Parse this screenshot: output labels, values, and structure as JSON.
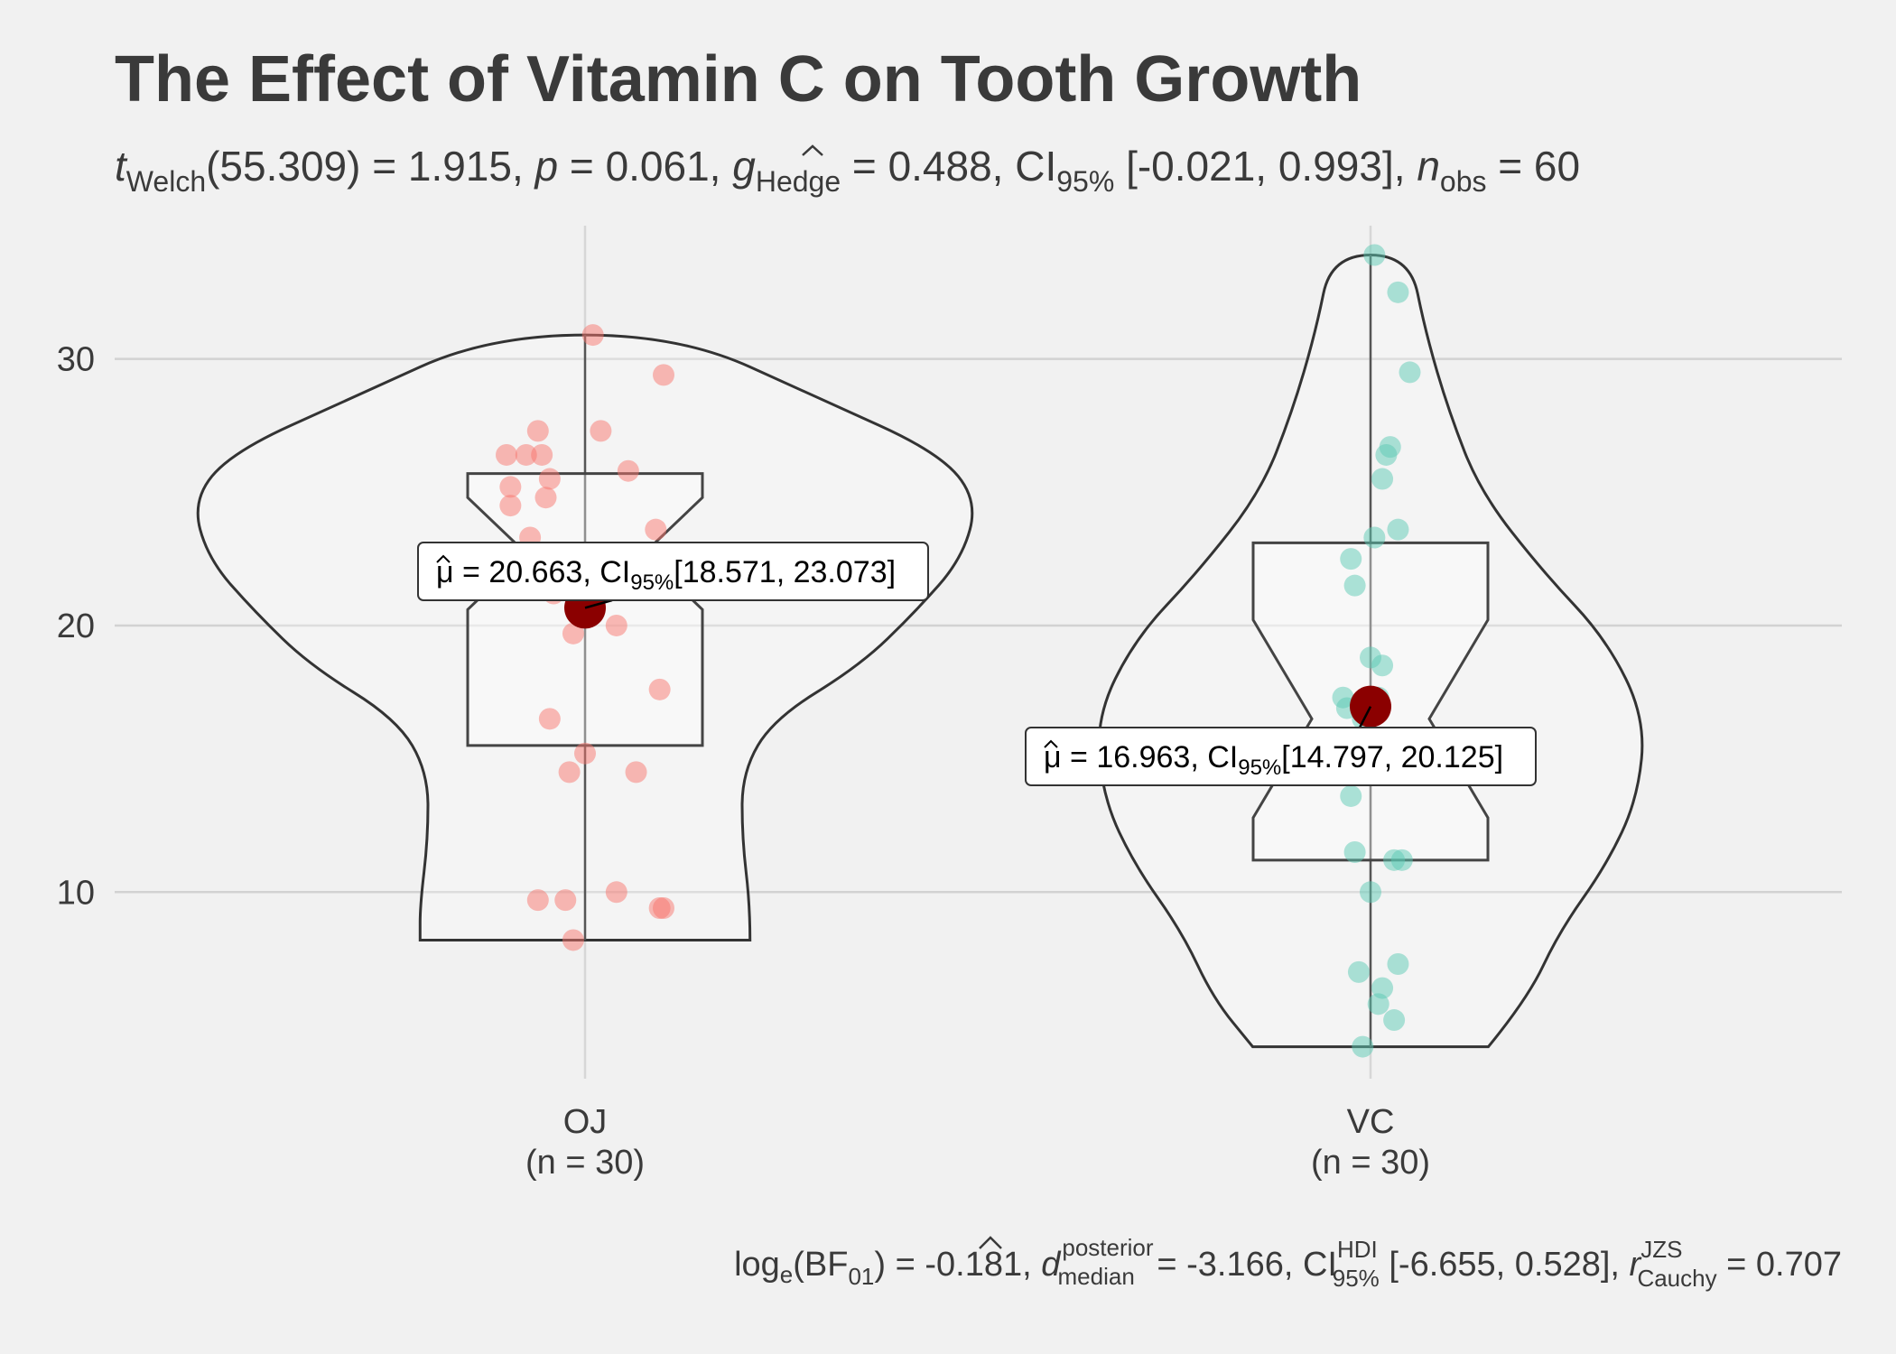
{
  "chart_data": {
    "type": "violin",
    "title": "The Effect of Vitamin C on Tooth Growth",
    "subtitle": {
      "t_label": "t",
      "t_sub": "Welch",
      "t_rest": "(55.309) = 1.915, ",
      "p_label": "p",
      "p_rest": " = 0.061, ",
      "g_label": "g",
      "g_sub": "Hedge",
      "g_rest": " = 0.488, CI",
      "ci_sub": "95%",
      "ci_rest": " [-0.021, 0.993], ",
      "n_label": "n",
      "n_sub": "obs",
      "n_rest": " = 60"
    },
    "caption": {
      "part1": "log",
      "part1_sub": "e",
      "part2": "(BF",
      "part2_sub": "01",
      "part3": ") = -0.181, ",
      "d_label": "d",
      "d_sup": "posterior",
      "d_sub": "median",
      "part4": " = -3.166, CI",
      "ci_sup": "HDI",
      "ci_sub": "95%",
      "part5": " [-6.655, 0.528], ",
      "r_label": "r",
      "r_sup": "JZS",
      "r_sub": "Cauchy",
      "part6": " = 0.707"
    },
    "ylim": [
      3,
      35
    ],
    "yticks": [
      10,
      20,
      30
    ],
    "grid": true,
    "categories": [
      {
        "name": "OJ",
        "n_label": "(n = 30)",
        "color": "#f8766d",
        "mean": 20.663,
        "mean_label_mu": "μ",
        "mean_label_rest": " = 20.663, CI",
        "mean_label_sub": "95%",
        "mean_label_ci": "[18.571, 23.073]",
        "box": {
          "q1": 15.5,
          "median": 22.7,
          "q3": 25.7,
          "min": 8.2,
          "max": 30.9
        },
        "points": [
          30.9,
          29.4,
          27.3,
          27.3,
          26.4,
          26.4,
          26.4,
          25.8,
          25.5,
          25.2,
          24.8,
          24.5,
          23.6,
          23.3,
          22.4,
          21.5,
          21.2,
          20.0,
          19.7,
          17.6,
          16.5,
          15.2,
          14.5,
          14.5,
          10.0,
          9.7,
          9.7,
          9.4,
          9.4,
          8.2
        ],
        "jitter": [
          0.02,
          0.2,
          0.04,
          -0.12,
          -0.2,
          -0.15,
          -0.11,
          0.11,
          -0.09,
          -0.19,
          -0.1,
          -0.19,
          0.18,
          -0.14,
          0.16,
          0.1,
          -0.08,
          0.08,
          -0.03,
          0.19,
          -0.09,
          0.0,
          -0.04,
          0.13,
          0.08,
          -0.12,
          -0.05,
          0.2,
          0.19,
          -0.03
        ],
        "violin_half_width": [
          [
            8.2,
            0.21
          ],
          [
            9.5,
            0.21
          ],
          [
            12,
            0.2
          ],
          [
            14.5,
            0.2
          ],
          [
            16.5,
            0.24
          ],
          [
            18.5,
            0.35
          ],
          [
            20.5,
            0.42
          ],
          [
            22.5,
            0.48
          ],
          [
            24.7,
            0.5
          ],
          [
            26.5,
            0.45
          ],
          [
            28.5,
            0.3
          ],
          [
            30.9,
            0.12
          ]
        ]
      },
      {
        "name": "VC",
        "n_label": "(n = 30)",
        "color": "#5cc9b3",
        "mean": 16.963,
        "mean_label_mu": "μ",
        "mean_label_rest": " = 16.963, CI",
        "mean_label_sub": "95%",
        "mean_label_ci": "[14.797, 20.125]",
        "box": {
          "q1": 11.2,
          "median": 16.5,
          "q3": 23.1,
          "min": 4.2,
          "max": 33.9
        },
        "points": [
          33.9,
          32.5,
          29.5,
          26.7,
          26.4,
          25.5,
          23.6,
          23.3,
          22.5,
          21.5,
          18.8,
          18.5,
          17.3,
          17.3,
          16.5,
          15.2,
          14.5,
          13.6,
          11.5,
          11.2,
          11.2,
          10.0,
          7.3,
          7.0,
          6.4,
          5.8,
          5.2,
          4.2,
          16.9,
          15.8
        ],
        "jitter": [
          0.01,
          0.07,
          0.1,
          0.05,
          0.04,
          0.03,
          0.07,
          0.01,
          -0.05,
          -0.04,
          0.0,
          0.03,
          -0.07,
          0.02,
          -0.02,
          0.06,
          0.06,
          -0.05,
          -0.04,
          0.06,
          0.08,
          0.0,
          0.07,
          -0.03,
          0.03,
          0.02,
          0.06,
          -0.02,
          -0.06,
          0.04
        ],
        "violin_half_width": [
          [
            4.2,
            0.15
          ],
          [
            6,
            0.2
          ],
          [
            8.5,
            0.24
          ],
          [
            11,
            0.3
          ],
          [
            13.5,
            0.34
          ],
          [
            16.5,
            0.35
          ],
          [
            19.5,
            0.3
          ],
          [
            22,
            0.22
          ],
          [
            25,
            0.14
          ],
          [
            28,
            0.1
          ],
          [
            31,
            0.07
          ],
          [
            33.9,
            0.05
          ]
        ]
      }
    ]
  }
}
